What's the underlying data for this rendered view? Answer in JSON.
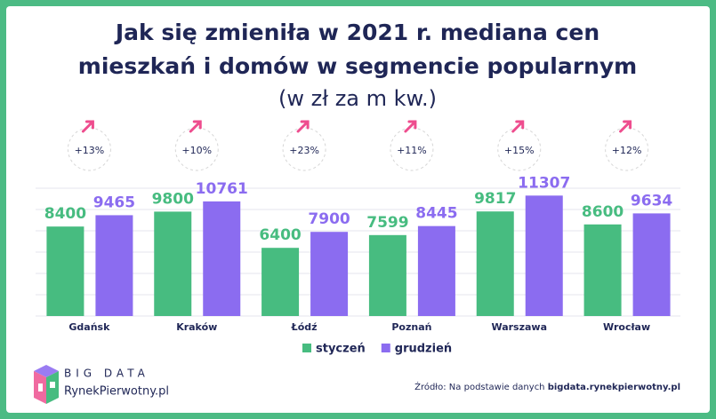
{
  "chart_data": {
    "type": "bar",
    "title": [
      "Jak się zmieniła w 2021 r. mediana cen",
      "mieszkań i domów w segmencie popularnym"
    ],
    "subtitle": "(w zł za m kw.)",
    "categories": [
      "Gdańsk",
      "Kraków",
      "Łódź",
      "Poznań",
      "Warszawa",
      "Wrocław"
    ],
    "series": [
      {
        "name": "styczeń",
        "color": "#47bc80",
        "values": [
          8400,
          9800,
          6400,
          7599,
          9817,
          8600
        ]
      },
      {
        "name": "grudzień",
        "color": "#8b6cf0",
        "values": [
          9465,
          10761,
          7900,
          8445,
          11307,
          9634
        ]
      }
    ],
    "annotations": [
      "+13%",
      "+10%",
      "+23%",
      "+11%",
      "+15%",
      "+12%"
    ],
    "ylim": [
      0,
      12000
    ],
    "yticks": [
      0,
      2000,
      4000,
      6000,
      8000,
      10000,
      12000
    ],
    "grid": true,
    "legend": "bottom"
  },
  "logo": {
    "line1": "BIG DATA",
    "line2": "RynekPierwotny.pl"
  },
  "source": {
    "prefix": "Źródło: Na podstawie danych",
    "site": "bigdata.rynekpierwotny.pl"
  }
}
